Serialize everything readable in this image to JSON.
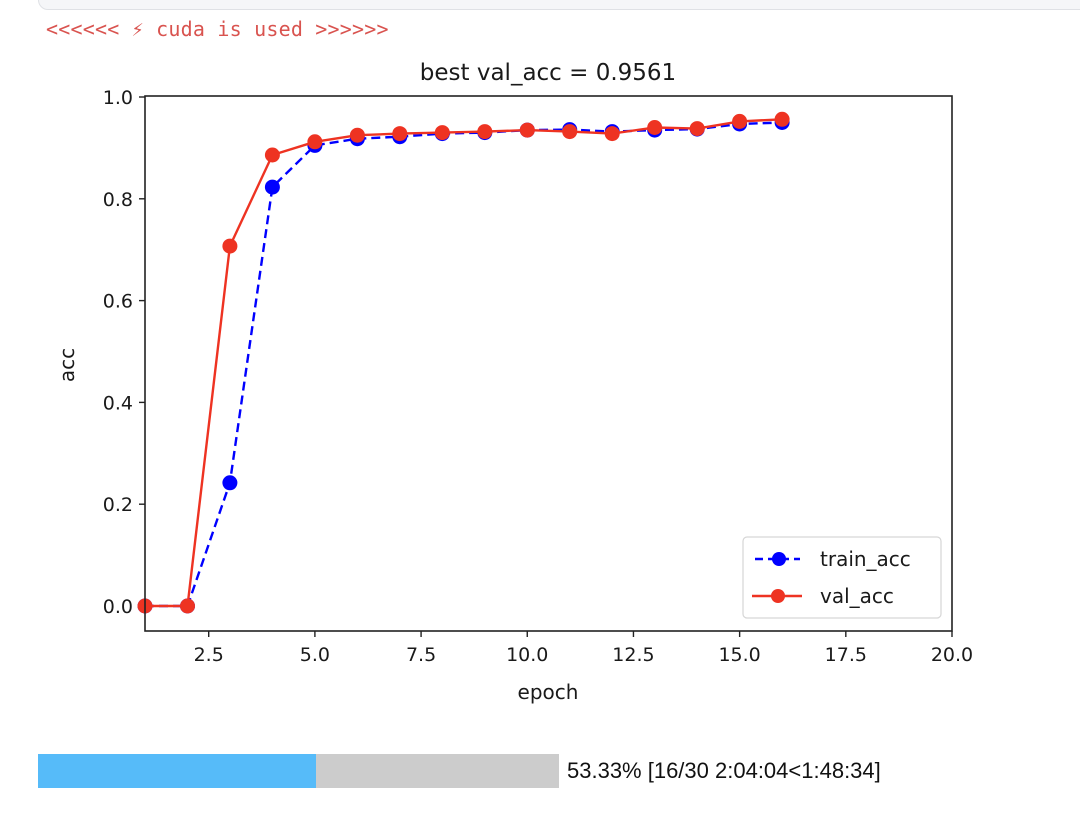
{
  "output": {
    "stdout_line": "<<<<<< ⚡ cuda is used >>>>>>",
    "stdout_color": "#d9534f"
  },
  "progress": {
    "percent": 53.33,
    "text": "53.33% [16/30 2:04:04<1:48:34]",
    "current": 16,
    "total": 30,
    "elapsed": "2:04:04",
    "remaining": "1:48:34",
    "fill_color": "#56bbf9",
    "track_color": "#cccccc"
  },
  "chart_data": {
    "type": "line",
    "title": "best val_acc = 0.9561",
    "xlabel": "epoch",
    "ylabel": "acc",
    "xlim": [
      1,
      20
    ],
    "ylim": [
      -0.05,
      1.0
    ],
    "xticks": [
      2.5,
      5.0,
      7.5,
      10.0,
      12.5,
      15.0,
      17.5,
      20.0
    ],
    "xtick_labels": [
      "2.5",
      "5.0",
      "7.5",
      "10.0",
      "12.5",
      "15.0",
      "17.5",
      "20.0"
    ],
    "yticks": [
      0.0,
      0.2,
      0.4,
      0.6,
      0.8,
      1.0
    ],
    "ytick_labels": [
      "0.0",
      "0.2",
      "0.4",
      "0.6",
      "0.8",
      "1.0"
    ],
    "grid": false,
    "legend_position": "lower right",
    "x": [
      1,
      2,
      3,
      4,
      5,
      6,
      7,
      8,
      9,
      10,
      11,
      12,
      13,
      14,
      15,
      16
    ],
    "series": [
      {
        "name": "train_acc",
        "color": "#0000ff",
        "linestyle": "dashed",
        "marker": "o",
        "values": [
          0.0,
          0.0,
          0.242,
          0.823,
          0.905,
          0.918,
          0.922,
          0.928,
          0.93,
          0.935,
          0.936,
          0.932,
          0.935,
          0.937,
          0.947,
          0.95
        ]
      },
      {
        "name": "val_acc",
        "color": "#ee3322",
        "linestyle": "solid",
        "marker": "o",
        "values": [
          0.0,
          0.0,
          0.707,
          0.886,
          0.912,
          0.925,
          0.928,
          0.93,
          0.932,
          0.935,
          0.932,
          0.928,
          0.94,
          0.938,
          0.952,
          0.9561
        ]
      }
    ]
  }
}
